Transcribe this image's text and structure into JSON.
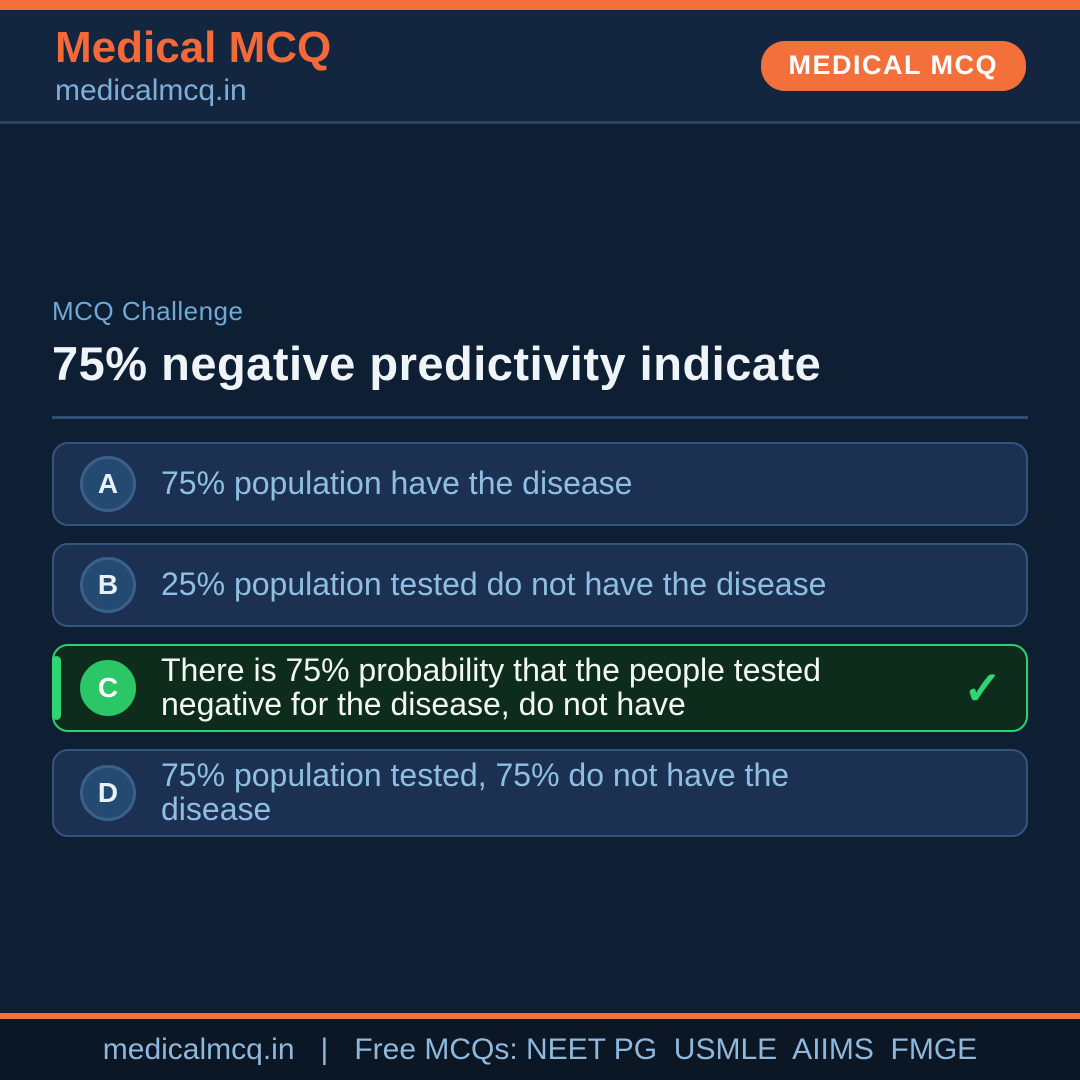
{
  "header": {
    "brand": "Medical MCQ",
    "site": "medicalmcq.in",
    "badge": "MEDICAL MCQ"
  },
  "question": {
    "eyebrow": "MCQ Challenge",
    "title": "75% negative predictivity indicate"
  },
  "options": [
    {
      "letter": "A",
      "text": "75% population have the disease",
      "correct": false
    },
    {
      "letter": "B",
      "text": "25% population tested do not have the disease",
      "correct": false
    },
    {
      "letter": "C",
      "text": "There is 75% probability that the people tested negative for the disease, do not have",
      "correct": true,
      "check_icon": "✓"
    },
    {
      "letter": "D",
      "text": "75% population tested, 75% do not have the disease",
      "correct": false
    }
  ],
  "footer": {
    "site": "medicalmcq.in",
    "separator": "|",
    "tagline": "Free MCQs: NEET PG  USMLE  AIIMS  FMGE"
  },
  "colors": {
    "accent_orange": "#f4703b",
    "brand_orange": "#f4693a",
    "background": "#0f1f33",
    "header_background": "#14263f",
    "card_background": "#1c3152",
    "card_border": "#33557d",
    "option_text": "#8fbee3",
    "correct_green": "#2fce6f",
    "correct_background": "#0d2c1b",
    "title_text": "#eff4f9",
    "footer_background": "#0b1724"
  }
}
